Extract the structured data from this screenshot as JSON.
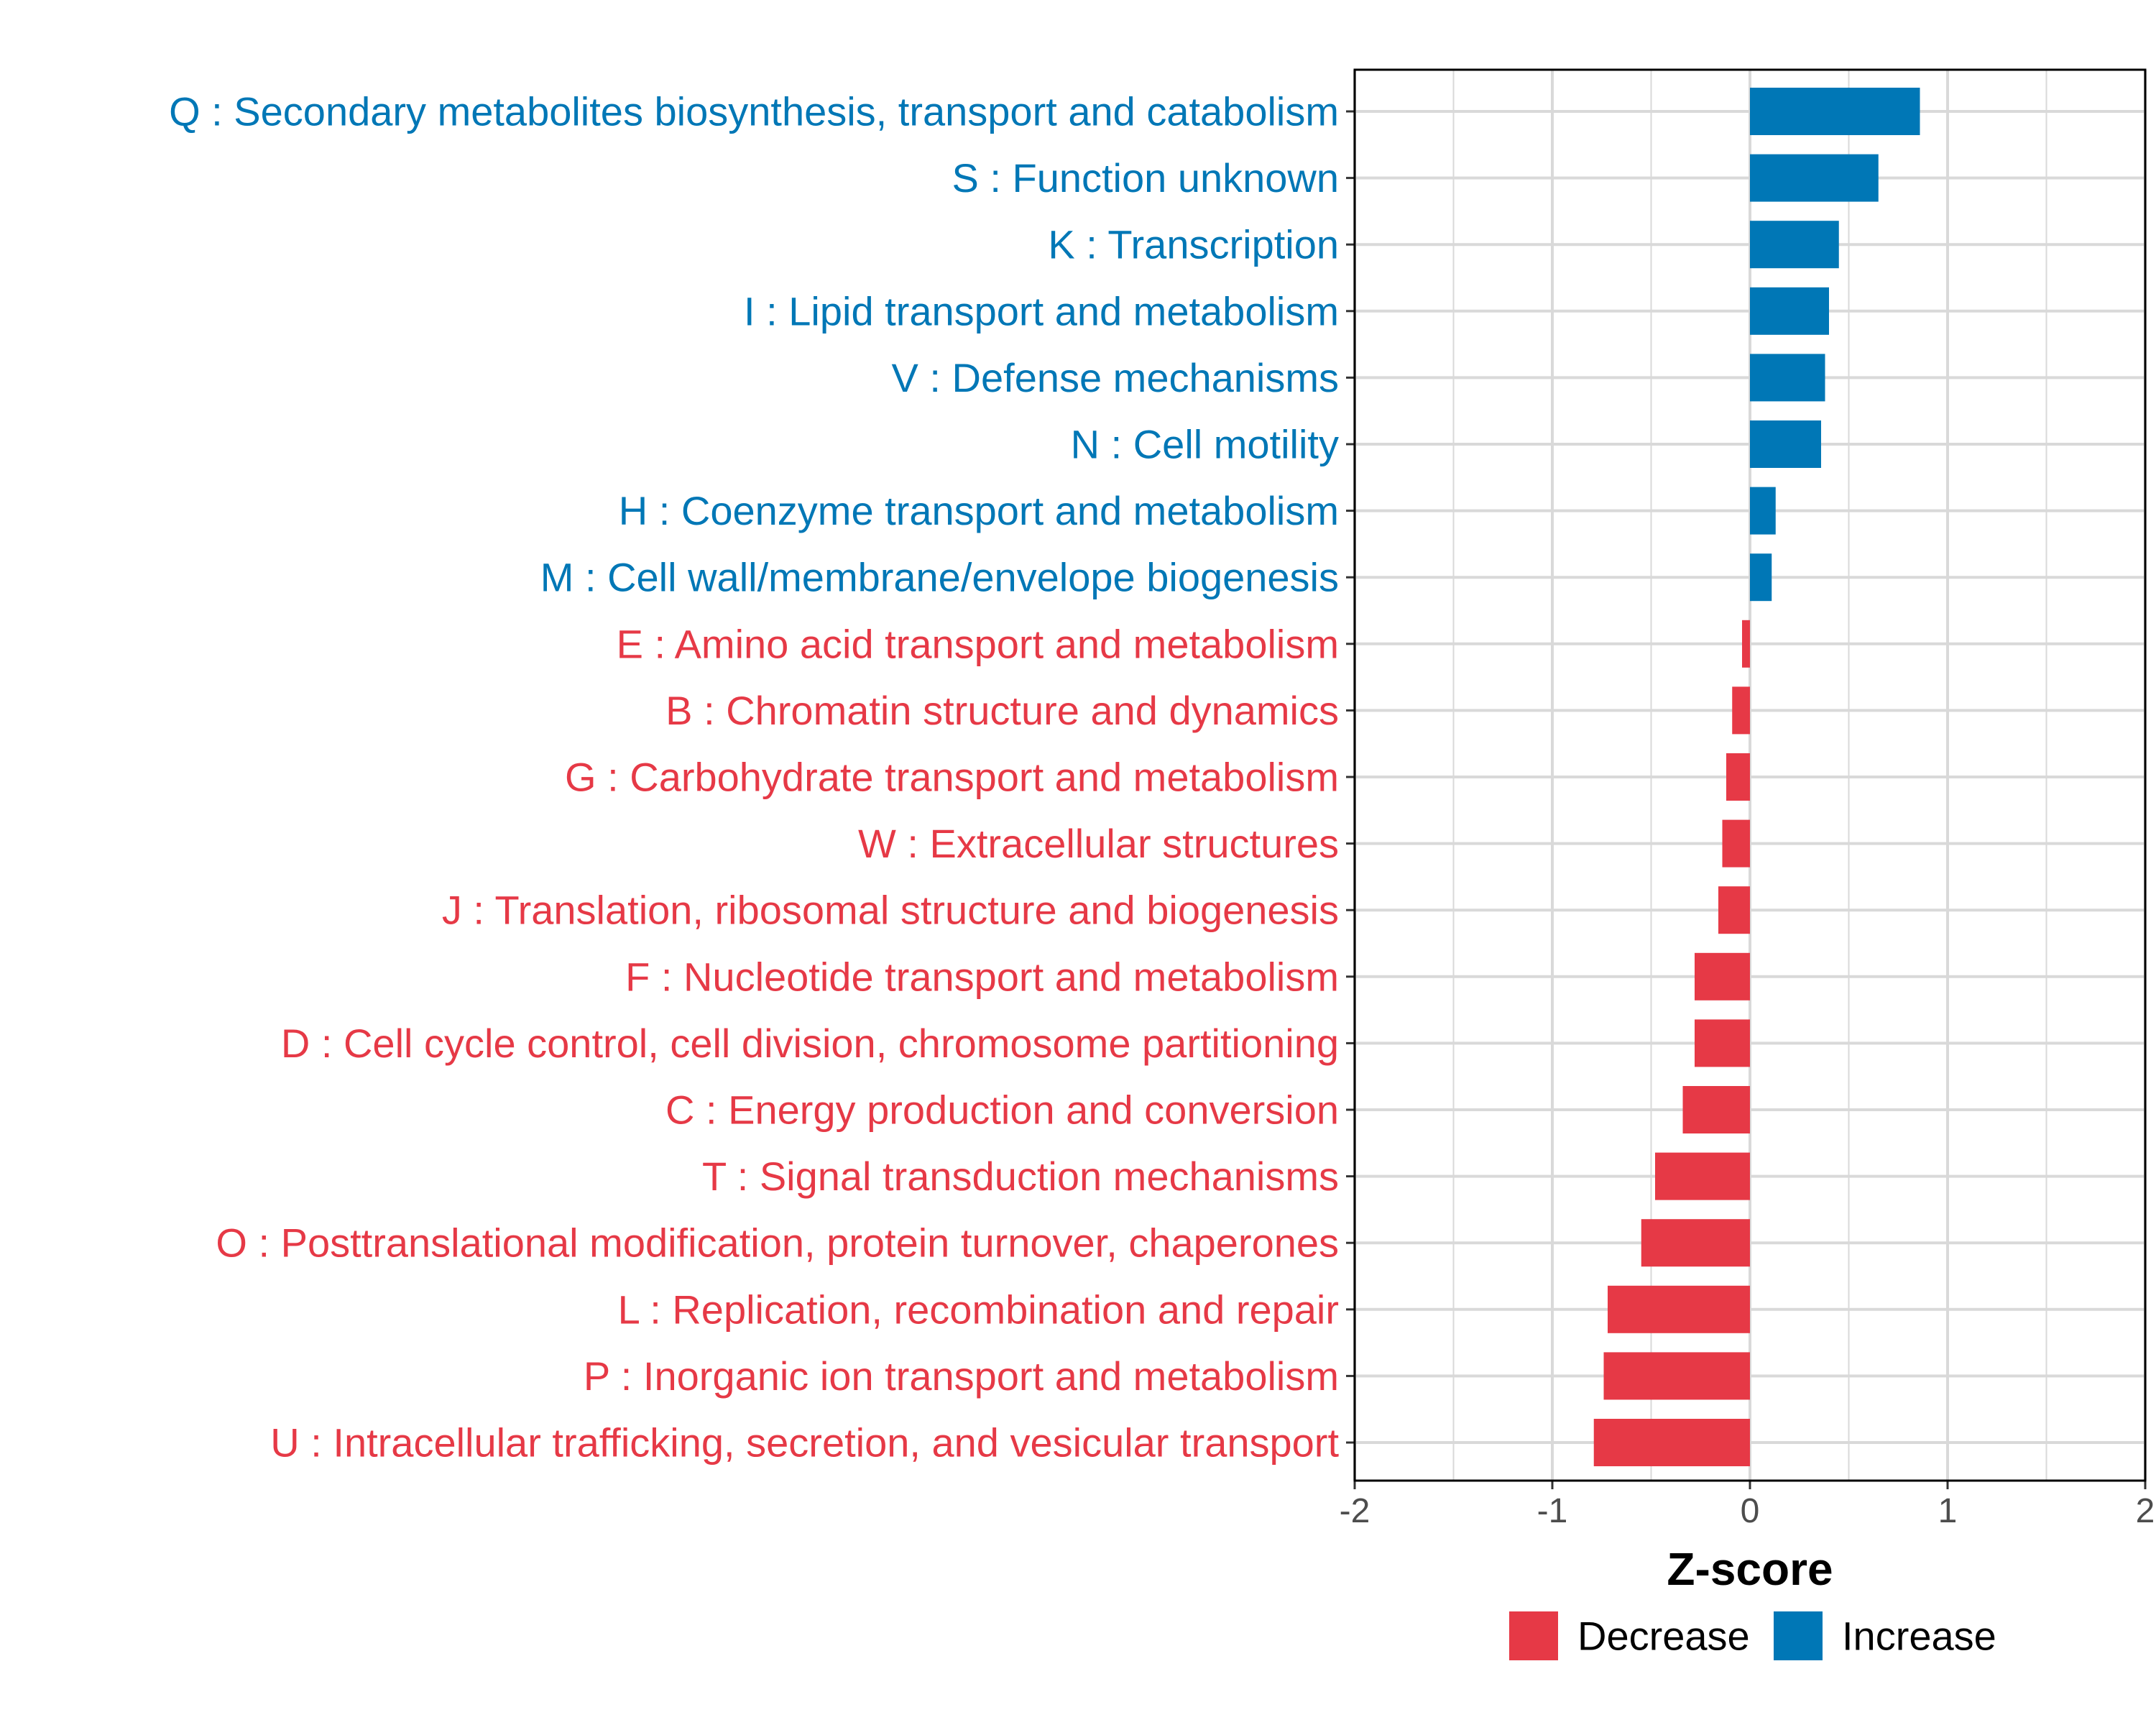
{
  "chart_data": {
    "type": "bar",
    "orientation": "horizontal",
    "xlabel": "Z-score",
    "ylabel": "",
    "xlim": [
      -2,
      2
    ],
    "xticks": [
      -2,
      -1,
      0,
      1,
      2
    ],
    "xtick_labels": [
      "-2",
      "-1",
      "0",
      "1",
      "2"
    ],
    "grid": true,
    "legend_position": "bottom",
    "categories": [
      "Q : Secondary metabolites biosynthesis, transport and catabolism",
      "S : Function unknown",
      "K : Transcription",
      "I : Lipid transport and metabolism",
      "V : Defense mechanisms",
      "N : Cell motility",
      "H : Coenzyme transport and metabolism",
      "M : Cell wall/membrane/envelope biogenesis",
      "E : Amino acid transport and metabolism",
      "B : Chromatin structure and dynamics",
      "G : Carbohydrate transport and metabolism",
      "W : Extracellular structures",
      "J : Translation, ribosomal structure and biogenesis",
      "F : Nucleotide transport and metabolism",
      "D : Cell cycle control, cell division, chromosome partitioning",
      "C : Energy production and conversion",
      "T : Signal transduction mechanisms",
      "O : Posttranslational modification, protein turnover, chaperones",
      "L : Replication, recombination and repair",
      "P : Inorganic ion transport and metabolism",
      "U : Intracellular trafficking, secretion, and vesicular transport"
    ],
    "values": [
      0.86,
      0.65,
      0.45,
      0.4,
      0.38,
      0.36,
      0.13,
      0.11,
      -0.04,
      -0.09,
      -0.12,
      -0.14,
      -0.16,
      -0.28,
      -0.28,
      -0.34,
      -0.48,
      -0.55,
      -0.72,
      -0.74,
      -0.79
    ],
    "groups": [
      "Increase",
      "Increase",
      "Increase",
      "Increase",
      "Increase",
      "Increase",
      "Increase",
      "Increase",
      "Decrease",
      "Decrease",
      "Decrease",
      "Decrease",
      "Decrease",
      "Decrease",
      "Decrease",
      "Decrease",
      "Decrease",
      "Decrease",
      "Decrease",
      "Decrease",
      "Decrease"
    ],
    "legend": [
      {
        "name": "Decrease",
        "color": "#E63946"
      },
      {
        "name": "Increase",
        "color": "#0077B6"
      }
    ],
    "colors": {
      "Decrease": "#E63946",
      "Increase": "#0077B6"
    }
  }
}
